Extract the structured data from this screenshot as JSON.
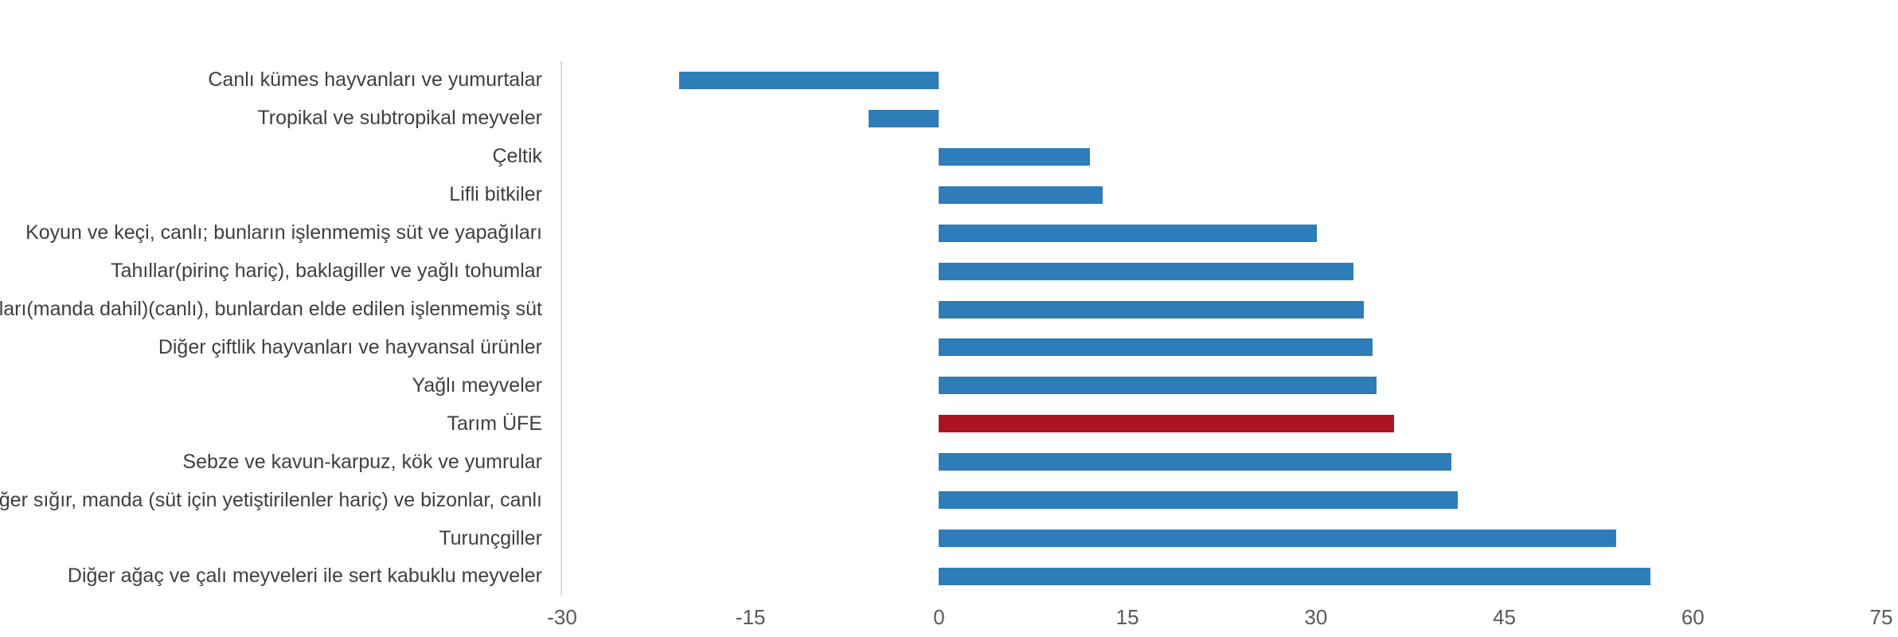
{
  "chart_data": {
    "type": "bar",
    "orientation": "horizontal",
    "title": "",
    "xlabel": "",
    "ylabel": "",
    "xlim": [
      -30,
      75
    ],
    "x_ticks": [
      -30,
      -15,
      0,
      15,
      30,
      45,
      60,
      75
    ],
    "grid": false,
    "legend": false,
    "categories": [
      "Canlı kümes hayvanları ve yumurtalar",
      "Tropikal ve subtropikal meyveler",
      "Çeltik",
      "Lifli bitkiler",
      "Koyun ve keçi, canlı; bunların işlenmemiş süt ve yapağıları",
      "Tahıllar(pirinç hariç), baklagiller ve yağlı tohumlar",
      "Süt sığırları(manda dahil)(canlı), bunlardan elde edilen işlenmemiş süt",
      "Diğer çiftlik hayvanları ve hayvansal ürünler",
      "Yağlı meyveler",
      "Tarım ÜFE",
      "Sebze ve kavun-karpuz, kök ve yumrular",
      "Diğer sığır, manda (süt için yetiştirilenler hariç) ve bizonlar, canlı",
      "Turunçgiller",
      "Diğer ağaç ve çalı meyveleri ile sert kabuklu meyveler"
    ],
    "values": [
      -20.7,
      -5.6,
      12.0,
      13.0,
      30.1,
      33.0,
      33.8,
      34.5,
      34.8,
      36.2,
      40.8,
      41.3,
      53.9,
      56.6
    ],
    "highlight_category": "Tarım ÜFE",
    "colors": {
      "bar": "#2E7CB8",
      "highlight": "#AC1320",
      "axis_line": "#D6DCE4",
      "tick_label": "#595959",
      "category_label": "#3F3F3F",
      "background": "#FFFFFF"
    }
  }
}
